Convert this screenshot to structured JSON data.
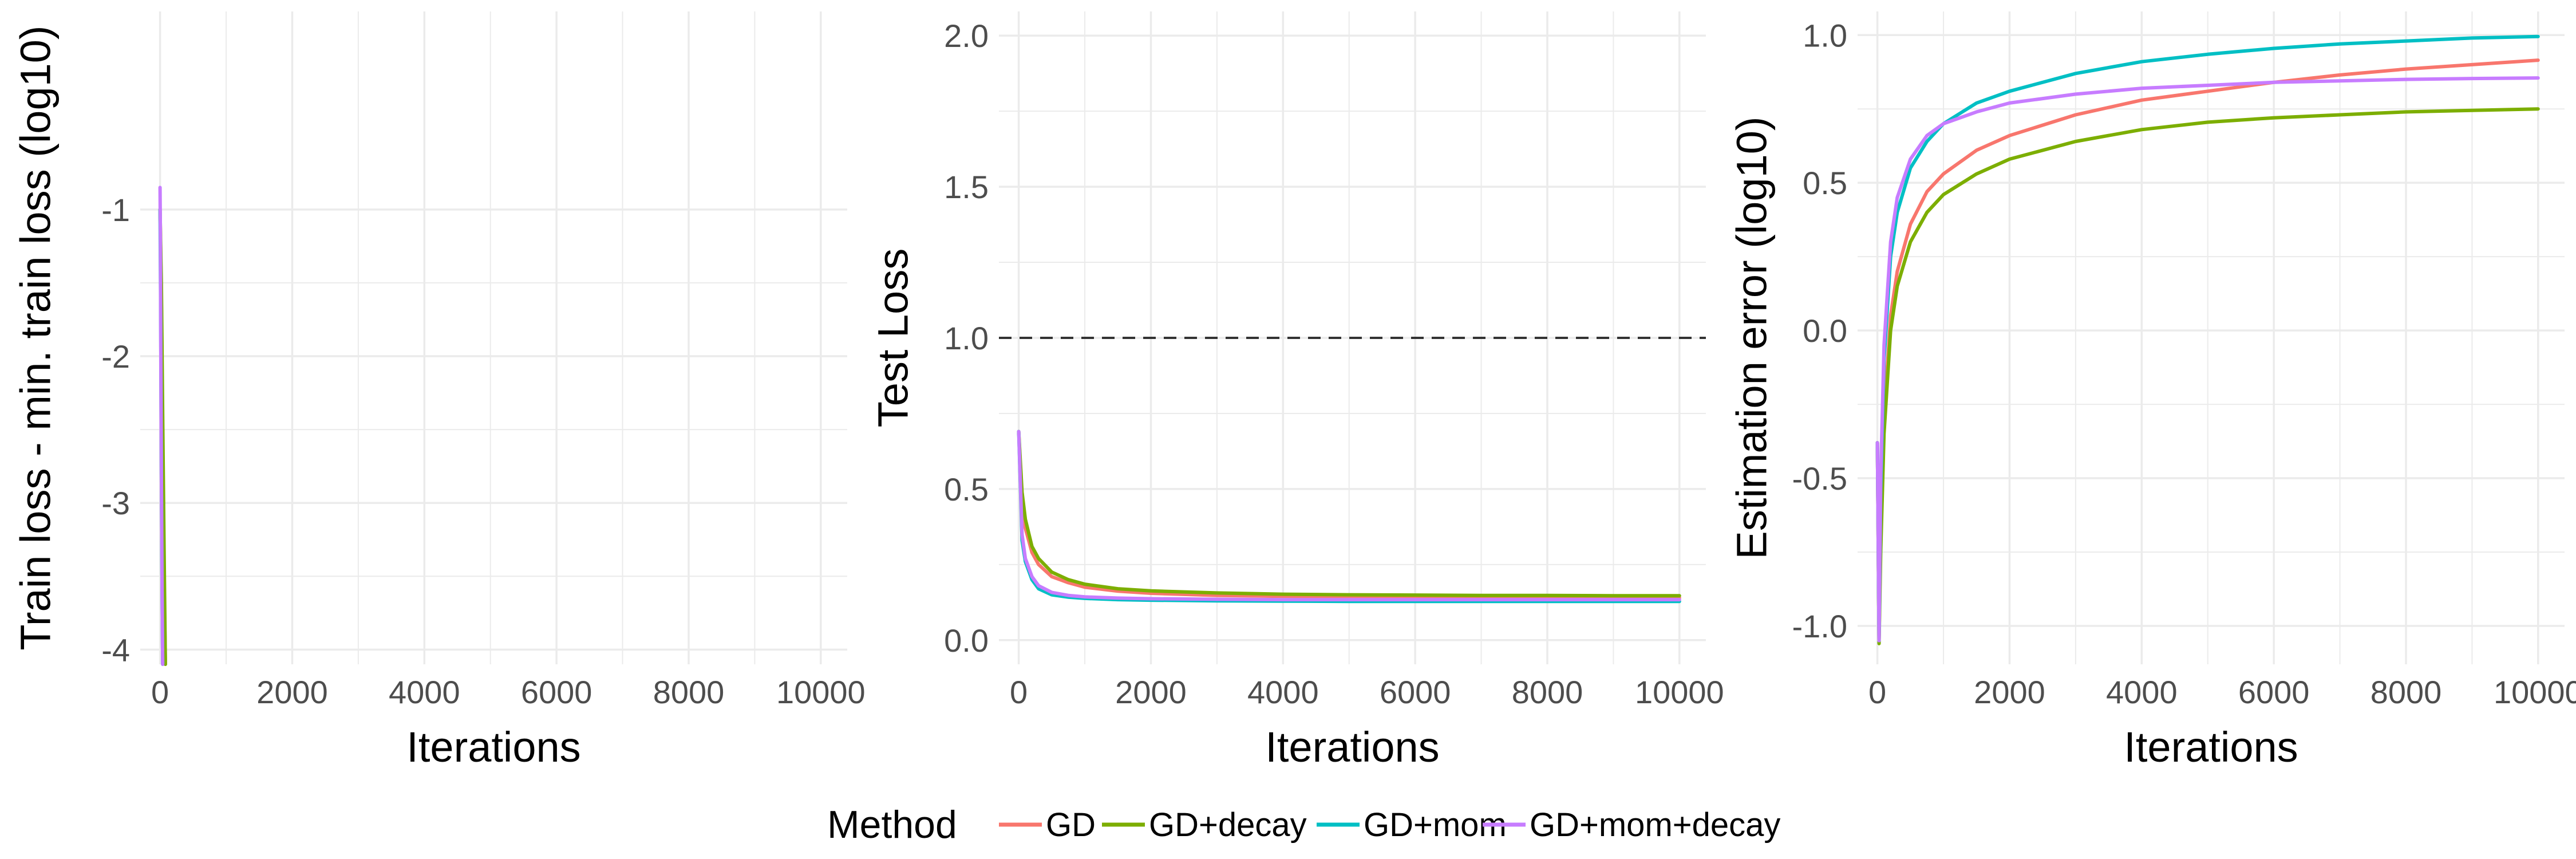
{
  "legend": {
    "title": "Method",
    "entries": [
      "GD",
      "GD+decay",
      "GD+mom",
      "GD+mom+decay"
    ]
  },
  "colors": {
    "GD": "#F8766D",
    "GD+decay": "#7CAE00",
    "GD+mom": "#00BFC4",
    "GD+mom+decay": "#C77CFF",
    "reference_line": "#333333",
    "grid": "#EBEBEB",
    "tick_text": "#4D4D4D",
    "axis_title": "#000000"
  },
  "chart_data": [
    {
      "type": "line",
      "xlabel": "Iterations",
      "ylabel": "Train loss - min. train loss (log10)",
      "xlim": [
        -300,
        10400
      ],
      "ylim": [
        -4.1,
        0.35
      ],
      "xticks": [
        0,
        2000,
        4000,
        6000,
        8000,
        10000
      ],
      "xtick_labels": [
        "0",
        "2000",
        "4000",
        "6000",
        "8000",
        "10000"
      ],
      "yticks": [
        -4,
        -3,
        -2,
        -1
      ],
      "ytick_labels": [
        "-4",
        "-3",
        "-2",
        "-1"
      ],
      "grid": true,
      "series": [
        {
          "name": "GD",
          "x": [
            0,
            20,
            40,
            60,
            80
          ],
          "y": [
            -1.0,
            -1.6,
            -2.6,
            -3.5,
            -4.1
          ]
        },
        {
          "name": "GD+decay",
          "x": [
            0,
            20,
            40,
            60,
            80
          ],
          "y": [
            -1.0,
            -1.5,
            -2.4,
            -3.3,
            -4.1
          ]
        },
        {
          "name": "GD+mom",
          "x": [
            0,
            10,
            20,
            30,
            40
          ],
          "y": [
            -1.0,
            -1.8,
            -2.8,
            -3.6,
            -4.1
          ]
        },
        {
          "name": "GD+mom+decay",
          "x": [
            0,
            5,
            10,
            20,
            30,
            40
          ],
          "y": [
            -0.85,
            -1.2,
            -1.9,
            -2.8,
            -3.6,
            -4.1
          ]
        }
      ]
    },
    {
      "type": "line",
      "xlabel": "Iterations",
      "ylabel": "Test Loss",
      "xlim": [
        -300,
        10400
      ],
      "ylim": [
        -0.08,
        2.08
      ],
      "xticks": [
        0,
        2000,
        4000,
        6000,
        8000,
        10000
      ],
      "xtick_labels": [
        "0",
        "2000",
        "4000",
        "6000",
        "8000",
        "10000"
      ],
      "yticks": [
        0.0,
        0.5,
        1.0,
        1.5,
        2.0
      ],
      "ytick_labels": [
        "0.0",
        "0.5",
        "1.0",
        "1.5",
        "2.0"
      ],
      "grid": true,
      "reference_line": {
        "y": 1.0,
        "style": "dashed"
      },
      "series": [
        {
          "name": "GD",
          "x": [
            0,
            50,
            100,
            200,
            300,
            500,
            750,
            1000,
            1500,
            2000,
            3000,
            4000,
            5000,
            6000,
            7000,
            8000,
            9000,
            10000
          ],
          "y": [
            0.69,
            0.46,
            0.37,
            0.29,
            0.25,
            0.21,
            0.19,
            0.175,
            0.162,
            0.155,
            0.148,
            0.145,
            0.143,
            0.142,
            0.141,
            0.14,
            0.14,
            0.14
          ]
        },
        {
          "name": "GD+decay",
          "x": [
            0,
            50,
            100,
            200,
            300,
            500,
            750,
            1000,
            1500,
            2000,
            3000,
            4000,
            5000,
            6000,
            7000,
            8000,
            9000,
            10000
          ],
          "y": [
            0.69,
            0.49,
            0.4,
            0.31,
            0.27,
            0.225,
            0.2,
            0.185,
            0.17,
            0.163,
            0.156,
            0.152,
            0.15,
            0.149,
            0.148,
            0.148,
            0.147,
            0.147
          ]
        },
        {
          "name": "GD+mom",
          "x": [
            0,
            50,
            100,
            200,
            300,
            500,
            750,
            1000,
            1500,
            2000,
            3000,
            4000,
            5000,
            6000,
            7000,
            8000,
            9000,
            10000
          ],
          "y": [
            0.69,
            0.33,
            0.26,
            0.2,
            0.17,
            0.15,
            0.142,
            0.138,
            0.134,
            0.132,
            0.13,
            0.129,
            0.128,
            0.128,
            0.128,
            0.128,
            0.128,
            0.128
          ]
        },
        {
          "name": "GD+mom+decay",
          "x": [
            0,
            50,
            100,
            200,
            300,
            500,
            750,
            1000,
            1500,
            2000,
            3000,
            4000,
            5000,
            6000,
            7000,
            8000,
            9000,
            10000
          ],
          "y": [
            0.69,
            0.35,
            0.27,
            0.21,
            0.18,
            0.158,
            0.148,
            0.143,
            0.139,
            0.137,
            0.135,
            0.134,
            0.134,
            0.134,
            0.134,
            0.134,
            0.134,
            0.134
          ]
        }
      ]
    },
    {
      "type": "line",
      "xlabel": "Iterations",
      "ylabel": "Estimation error (log10)",
      "xlim": [
        -300,
        10400
      ],
      "ylim": [
        -1.13,
        1.08
      ],
      "xticks": [
        0,
        2000,
        4000,
        6000,
        8000,
        10000
      ],
      "xtick_labels": [
        "0",
        "2000",
        "4000",
        "6000",
        "8000",
        "10000"
      ],
      "yticks": [
        -1.0,
        -0.5,
        0.0,
        0.5,
        1.0
      ],
      "ytick_labels": [
        "-1.0",
        "-0.5",
        "0.0",
        "0.5",
        "1.0"
      ],
      "grid": true,
      "series": [
        {
          "name": "GD",
          "x": [
            0,
            25,
            50,
            100,
            200,
            300,
            500,
            750,
            1000,
            1500,
            2000,
            3000,
            4000,
            5000,
            6000,
            7000,
            8000,
            9000,
            10000
          ],
          "y": [
            -0.38,
            -1.05,
            -0.7,
            -0.3,
            0.05,
            0.2,
            0.36,
            0.47,
            0.53,
            0.61,
            0.66,
            0.73,
            0.78,
            0.81,
            0.84,
            0.865,
            0.885,
            0.9,
            0.915
          ]
        },
        {
          "name": "GD+decay",
          "x": [
            0,
            25,
            50,
            100,
            200,
            300,
            500,
            750,
            1000,
            1500,
            2000,
            3000,
            4000,
            5000,
            6000,
            7000,
            8000,
            9000,
            10000
          ],
          "y": [
            -0.38,
            -1.06,
            -0.75,
            -0.35,
            0.0,
            0.15,
            0.3,
            0.4,
            0.46,
            0.53,
            0.58,
            0.64,
            0.68,
            0.705,
            0.72,
            0.73,
            0.74,
            0.745,
            0.75
          ]
        },
        {
          "name": "GD+mom",
          "x": [
            0,
            25,
            50,
            100,
            200,
            300,
            500,
            750,
            1000,
            1500,
            2000,
            3000,
            4000,
            5000,
            6000,
            7000,
            8000,
            9000,
            10000
          ],
          "y": [
            -0.38,
            -1.05,
            -0.55,
            -0.1,
            0.25,
            0.4,
            0.55,
            0.64,
            0.7,
            0.77,
            0.81,
            0.87,
            0.91,
            0.935,
            0.955,
            0.97,
            0.98,
            0.99,
            0.995
          ]
        },
        {
          "name": "GD+mom+decay",
          "x": [
            0,
            25,
            50,
            100,
            200,
            300,
            500,
            750,
            1000,
            1500,
            2000,
            3000,
            4000,
            5000,
            6000,
            7000,
            8000,
            9000,
            10000
          ],
          "y": [
            -0.38,
            -1.05,
            -0.5,
            -0.05,
            0.3,
            0.45,
            0.58,
            0.66,
            0.7,
            0.74,
            0.77,
            0.8,
            0.82,
            0.83,
            0.84,
            0.845,
            0.85,
            0.853,
            0.855
          ]
        }
      ]
    }
  ]
}
